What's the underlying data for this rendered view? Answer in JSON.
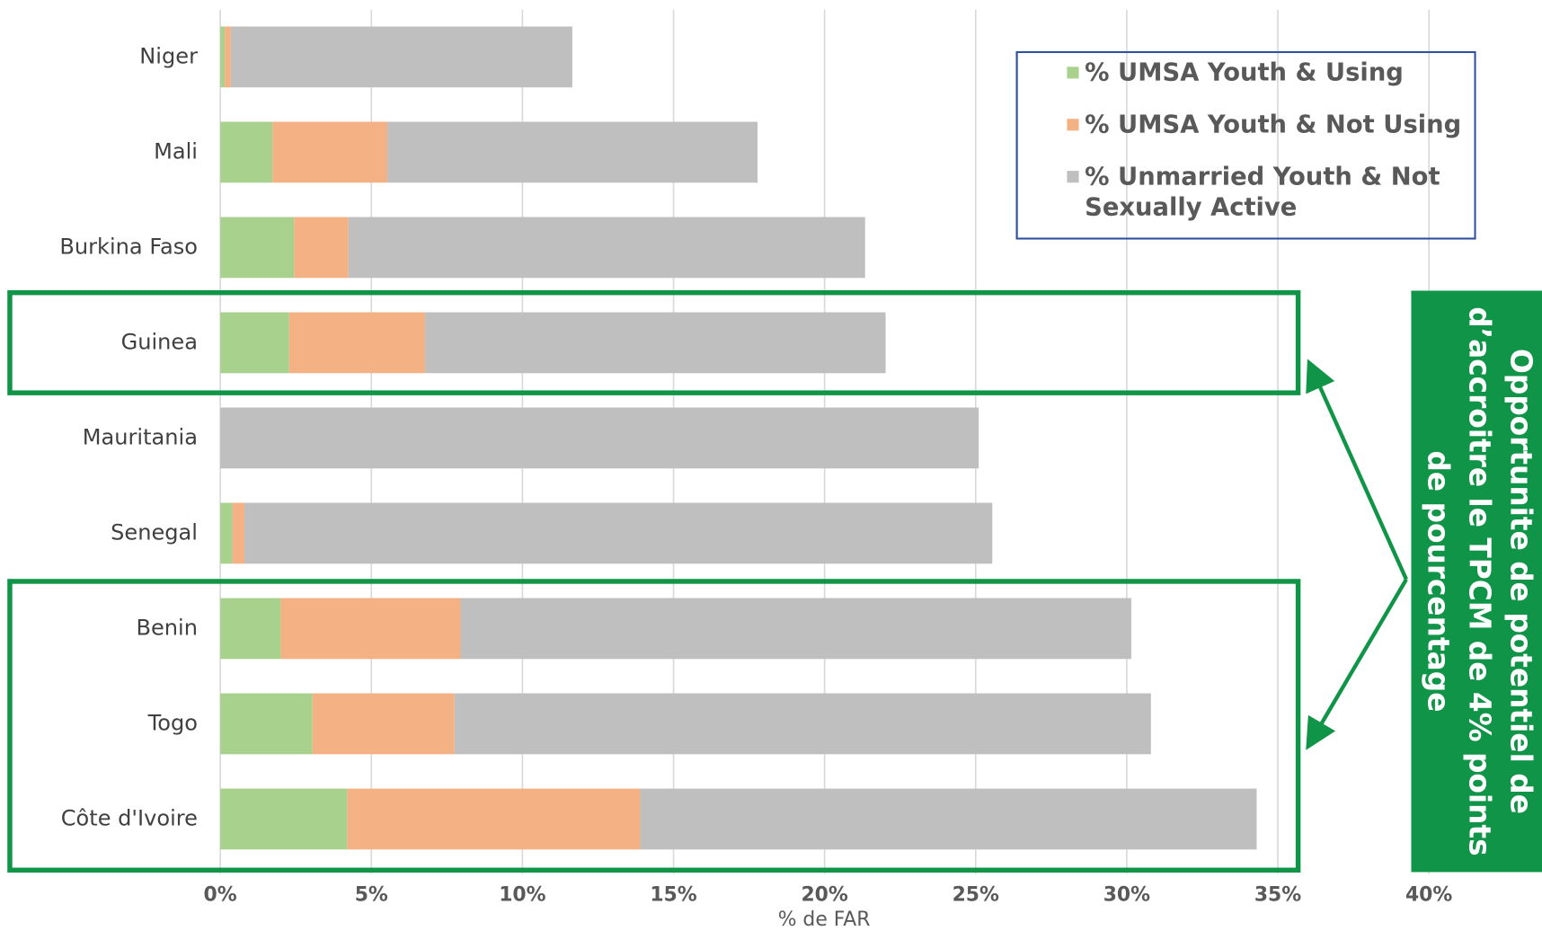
{
  "chart_data": {
    "type": "bar",
    "orientation": "horizontal",
    "stacked": true,
    "categories": [
      "Niger",
      "Mali",
      "Burkina Faso",
      "Guinea",
      "Mauritania",
      "Senegal",
      "Benin",
      "Togo",
      "Côte d'Ivoire"
    ],
    "series": [
      {
        "name": "% UMSA Youth & Using",
        "color": "#a9d18e",
        "values": [
          0.15,
          1.73,
          2.44,
          2.28,
          0,
          0.4,
          2.0,
          3.05,
          4.2
        ]
      },
      {
        "name": "% UMSA Youth & Not Using",
        "color": "#f4b183",
        "values": [
          0.2,
          3.8,
          1.8,
          4.5,
          0,
          0.4,
          5.95,
          4.7,
          9.7
        ]
      },
      {
        "name": "% Unmarried Youth & Not Sexually Active",
        "color": "#bfbfbf",
        "values": [
          11.3,
          12.25,
          17.1,
          15.24,
          25.1,
          24.75,
          22.2,
          23.05,
          20.4
        ]
      }
    ],
    "xlim": [
      0,
      40
    ],
    "xticks": [
      {
        "value": 0,
        "label": "0%"
      },
      {
        "value": 5,
        "label": "5%"
      },
      {
        "value": 10,
        "label": "10%"
      },
      {
        "value": 15,
        "label": "15%"
      },
      {
        "value": 20,
        "label": "20%"
      },
      {
        "value": 25,
        "label": "25%"
      },
      {
        "value": 30,
        "label": "30%"
      },
      {
        "value": 35,
        "label": "35%"
      },
      {
        "value": 40,
        "label": "40%"
      }
    ],
    "xlabel": "% de FAR",
    "grid": true,
    "annotation": [
      "Opportunite de potentiel de",
      "d’accroitre le TPCM de 4% points",
      "de pourcentage"
    ]
  }
}
